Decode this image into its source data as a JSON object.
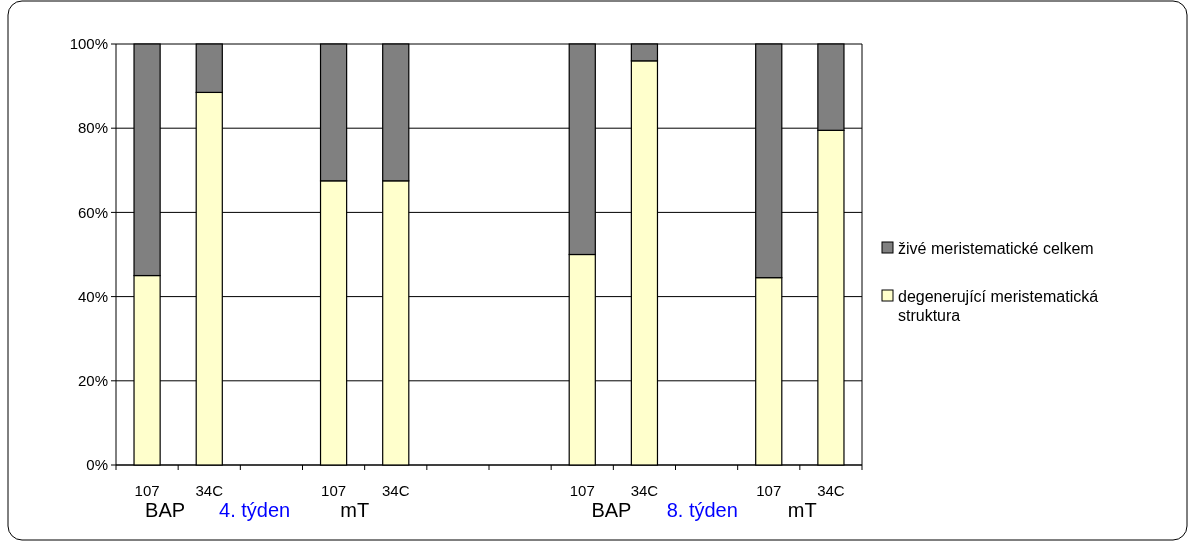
{
  "chart_data": {
    "type": "bar",
    "stacked": true,
    "categories": [
      "107",
      "34C",
      null,
      "107",
      "34C",
      null,
      null,
      "107",
      "34C",
      null,
      "107",
      "34C"
    ],
    "series": [
      {
        "name": "degenerující meristematická struktura",
        "color": "#ffffcc",
        "values": [
          45,
          88.5,
          null,
          67.5,
          67.5,
          null,
          null,
          50,
          96,
          null,
          44.5,
          79.5
        ]
      },
      {
        "name": "živé meristematické celkem",
        "color": "#808080",
        "values": [
          55,
          11.5,
          null,
          32.5,
          32.5,
          null,
          null,
          50,
          4,
          null,
          55.5,
          20.5
        ]
      }
    ],
    "ylim": [
      0,
      100
    ],
    "yticks": [
      {
        "value": 0,
        "label": "0%"
      },
      {
        "value": 20,
        "label": "20%"
      },
      {
        "value": 40,
        "label": "40%"
      },
      {
        "value": 60,
        "label": "60%"
      },
      {
        "value": 80,
        "label": "80%"
      },
      {
        "value": 100,
        "label": "100%"
      }
    ],
    "grid": "y",
    "legend": "right",
    "annotations": [
      "BAP",
      "4. týden",
      "mT",
      "BAP",
      "8. týden",
      "mT"
    ]
  }
}
